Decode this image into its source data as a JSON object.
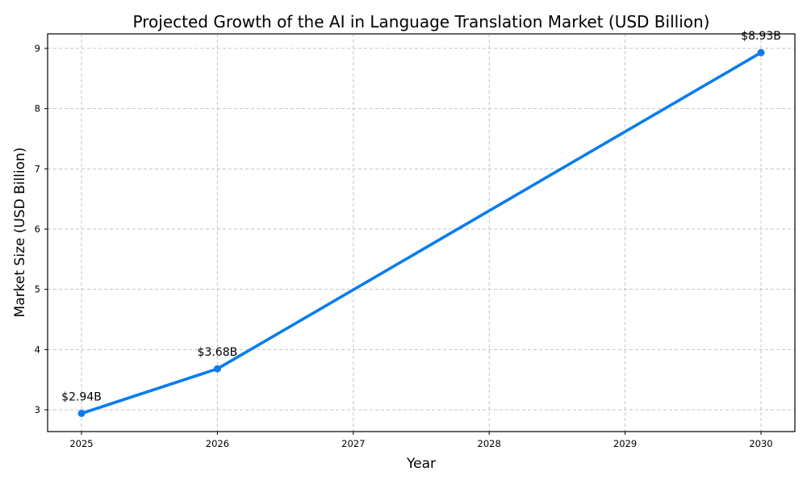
{
  "chart_data": {
    "type": "line",
    "title": "Projected Growth of the AI in Language Translation Market (USD Billion)",
    "xlabel": "Year",
    "ylabel": "Market Size (USD Billion)",
    "x": [
      2025,
      2026,
      2030
    ],
    "series": [
      {
        "name": "Market Size",
        "values": [
          2.94,
          3.68,
          8.93
        ],
        "labels": [
          "$2.94B",
          "$3.68B",
          "$8.93B"
        ],
        "color": "#0a7cf0",
        "marker": "circle"
      }
    ],
    "xticks": [
      "2025",
      "2026",
      "2027",
      "2028",
      "2029",
      "2030"
    ],
    "yticks": [
      "3",
      "4",
      "5",
      "6",
      "7",
      "8",
      "9"
    ],
    "xlim": [
      2024.75,
      2030.25
    ],
    "ylim": [
      2.64,
      9.24
    ],
    "grid": true,
    "legend": null
  }
}
